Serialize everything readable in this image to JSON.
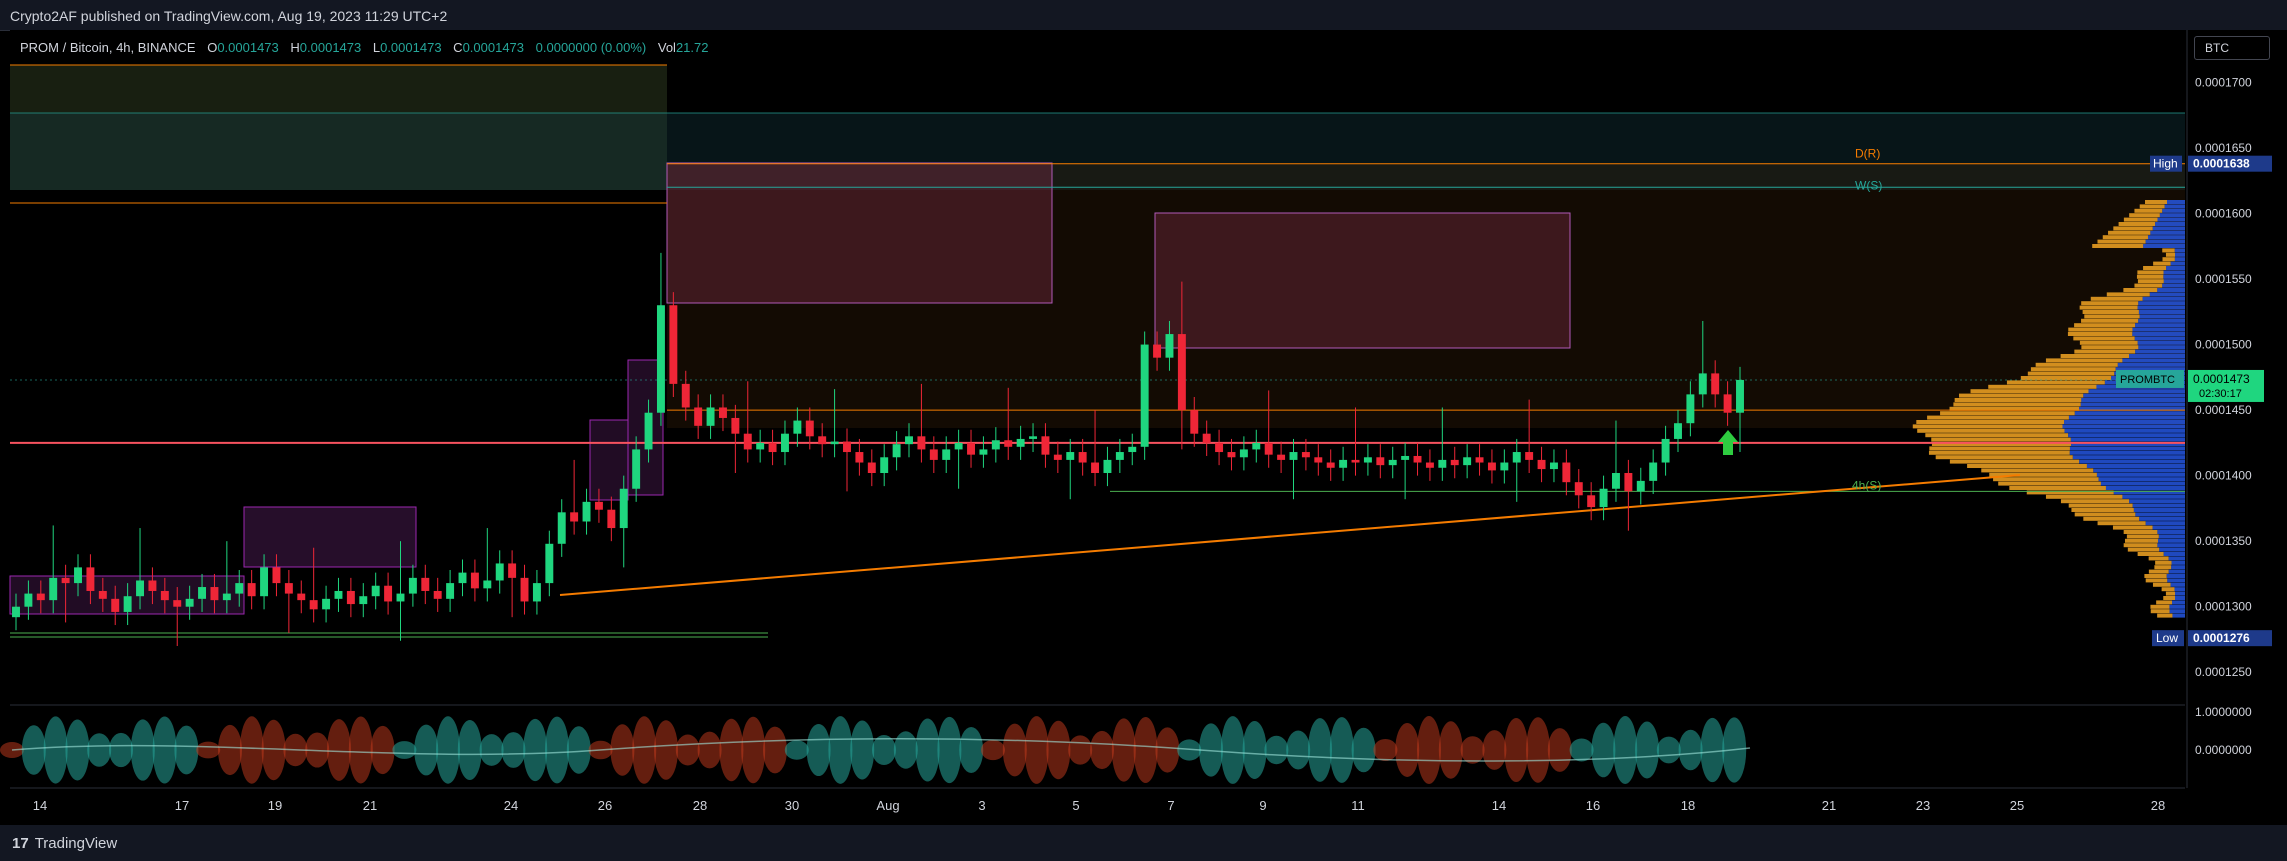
{
  "header": {
    "published_text": "Crypto2AF published on TradingView.com, Aug 19, 2023 11:29 UTC+2"
  },
  "legend": {
    "symbol": "PROM / Bitcoin, 4h, BINANCE",
    "open_label": "O",
    "open": "0.0001473",
    "high_label": "H",
    "high": "0.0001473",
    "low_label": "L",
    "low": "0.0001473",
    "close_label": "C",
    "close": "0.0001473",
    "change": "0.0000000 (0.00%)",
    "vol_label": "Vol",
    "vol": "21.72"
  },
  "currency_button": "BTC",
  "footer": {
    "brand_glyph": "17",
    "brand": "TradingView"
  },
  "colors": {
    "up": "#26a69a",
    "up_bright": "#1fd67f",
    "down": "#ef2637",
    "price_line": "#f7525f",
    "resistance": "#f57c00",
    "support": "#4caf50",
    "teal": "#26a69a",
    "profile": "#f5a623",
    "profile_blue": "#2962ff"
  },
  "chart_data": {
    "type": "candlestick",
    "title": "PROM / Bitcoin, 4h, BINANCE",
    "y_axis": {
      "ticks": [
        "0.0001700",
        "0.0001650",
        "0.0001600",
        "0.0001550",
        "0.0001500",
        "0.0001450",
        "0.0001400",
        "0.0001350",
        "0.0001300",
        "0.0001250"
      ],
      "range": [
        0.0001225,
        0.000174
      ]
    },
    "x_axis": {
      "ticks": [
        "14",
        "17",
        "19",
        "21",
        "24",
        "26",
        "28",
        "30",
        "Aug",
        "3",
        "5",
        "7",
        "9",
        "11",
        "14",
        "16",
        "18",
        "21",
        "23",
        "25",
        "28"
      ]
    },
    "markers": {
      "high_label": "High",
      "high_value": "0.0001638",
      "low_label": "Low",
      "low_value": "0.0001276",
      "current_symbol": "PROMBTC",
      "current_value": "0.0001473",
      "countdown": "02:30:17"
    },
    "levels": {
      "daily_resistance_label": "D(R)",
      "daily_resistance": 0.0001638,
      "weekly_support_label": "W(S)",
      "weekly_support": 0.000162,
      "h4_support_label": "4h(S)",
      "h4_support": 0.0001388,
      "orange_top": 0.0001608,
      "orange_mid": 0.000145,
      "red_line": 0.0001425
    },
    "closes": [
      0.00013,
      0.000131,
      0.0001305,
      0.0001322,
      0.0001318,
      0.000133,
      0.0001312,
      0.0001306,
      0.0001296,
      0.0001308,
      0.000132,
      0.0001312,
      0.0001305,
      0.00013,
      0.0001306,
      0.0001315,
      0.0001305,
      0.000131,
      0.0001318,
      0.0001308,
      0.000133,
      0.0001318,
      0.000131,
      0.0001305,
      0.0001298,
      0.0001306,
      0.0001312,
      0.0001302,
      0.0001308,
      0.0001316,
      0.0001304,
      0.000131,
      0.0001322,
      0.0001312,
      0.0001306,
      0.0001318,
      0.0001326,
      0.0001314,
      0.000132,
      0.0001333,
      0.0001322,
      0.0001304,
      0.0001318,
      0.0001348,
      0.0001372,
      0.0001365,
      0.000138,
      0.0001374,
      0.000136,
      0.000139,
      0.000142,
      0.0001448,
      0.000153,
      0.000147,
      0.0001452,
      0.0001438,
      0.0001452,
      0.0001444,
      0.0001432,
      0.000142,
      0.0001425,
      0.0001418,
      0.0001432,
      0.0001442,
      0.000143,
      0.0001424,
      0.0001426,
      0.0001418,
      0.000141,
      0.0001402,
      0.0001414,
      0.0001424,
      0.000143,
      0.000142,
      0.0001412,
      0.000142,
      0.0001425,
      0.0001416,
      0.000142,
      0.0001427,
      0.0001422,
      0.0001428,
      0.000143,
      0.0001416,
      0.0001412,
      0.0001418,
      0.000141,
      0.0001402,
      0.0001412,
      0.0001418,
      0.0001422,
      0.00015,
      0.000149,
      0.0001508,
      0.000145,
      0.0001432,
      0.0001425,
      0.0001418,
      0.0001414,
      0.000142,
      0.0001425,
      0.0001416,
      0.0001412,
      0.0001418,
      0.0001414,
      0.000141,
      0.0001406,
      0.0001412,
      0.000141,
      0.0001414,
      0.0001408,
      0.0001412,
      0.0001415,
      0.000141,
      0.0001406,
      0.0001412,
      0.0001408,
      0.0001414,
      0.000141,
      0.0001404,
      0.000141,
      0.0001418,
      0.0001412,
      0.0001405,
      0.000141,
      0.0001395,
      0.0001385,
      0.0001376,
      0.000139,
      0.0001402,
      0.0001388,
      0.0001396,
      0.000141,
      0.0001428,
      0.000144,
      0.0001462,
      0.0001478,
      0.0001462,
      0.0001448,
      0.0001473
    ]
  }
}
